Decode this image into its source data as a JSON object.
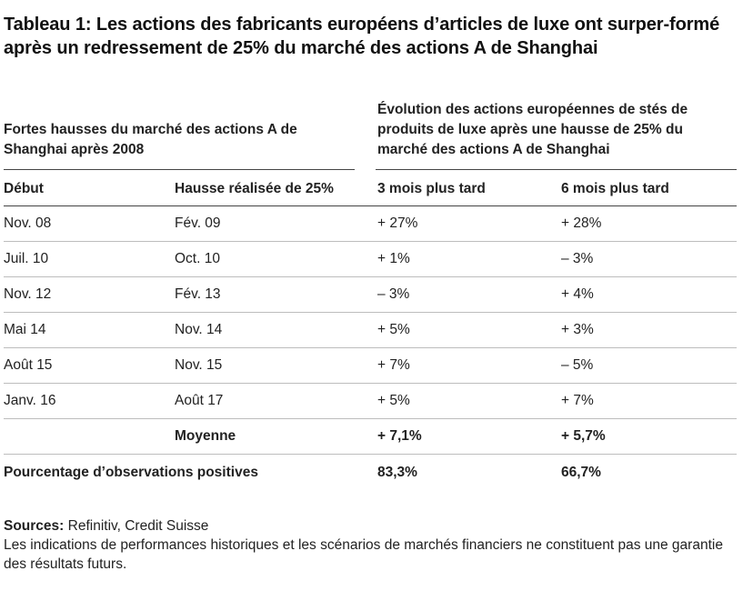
{
  "title": "Tableau 1: Les actions des fabricants européens d’articles de luxe ont surper-formé après un redressement de 25% du marché des actions A de Shanghai",
  "group_headers": {
    "left": "Fortes hausses du marché des actions A de Shanghai après 2008",
    "right": "Évolution des actions européennes de stés de produits de luxe après une hausse de 25% du marché des actions A de Shanghai"
  },
  "columns": [
    "Début",
    "Hausse réalisée de 25%",
    "3 mois plus tard",
    "6 mois plus tard"
  ],
  "rows": [
    [
      "Nov. 08",
      "Fév. 09",
      "+ 27%",
      "+ 28%"
    ],
    [
      "Juil. 10",
      "Oct. 10",
      "+ 1%",
      "– 3%"
    ],
    [
      "Nov. 12",
      "Fév. 13",
      "– 3%",
      "+ 4%"
    ],
    [
      "Mai 14",
      "Nov. 14",
      "+ 5%",
      "+ 3%"
    ],
    [
      "Août 15",
      "Nov. 15",
      "+ 7%",
      "– 5%"
    ],
    [
      "Janv. 16",
      "Août 17",
      "+ 5%",
      "+ 7%"
    ]
  ],
  "average": {
    "label": "Moyenne",
    "three_months": "+ 7,1%",
    "six_months": "+ 5,7%"
  },
  "positive": {
    "label": "Pourcentage d’observations positives",
    "three_months": "83,3%",
    "six_months": "66,7%"
  },
  "footer": {
    "sources_label": "Sources:",
    "sources_text": " Refinitiv, Credit Suisse",
    "disclaimer": "Les indications de performances historiques et les scénarios de marchés financiers ne constituent pas une garantie des résultats futurs."
  }
}
